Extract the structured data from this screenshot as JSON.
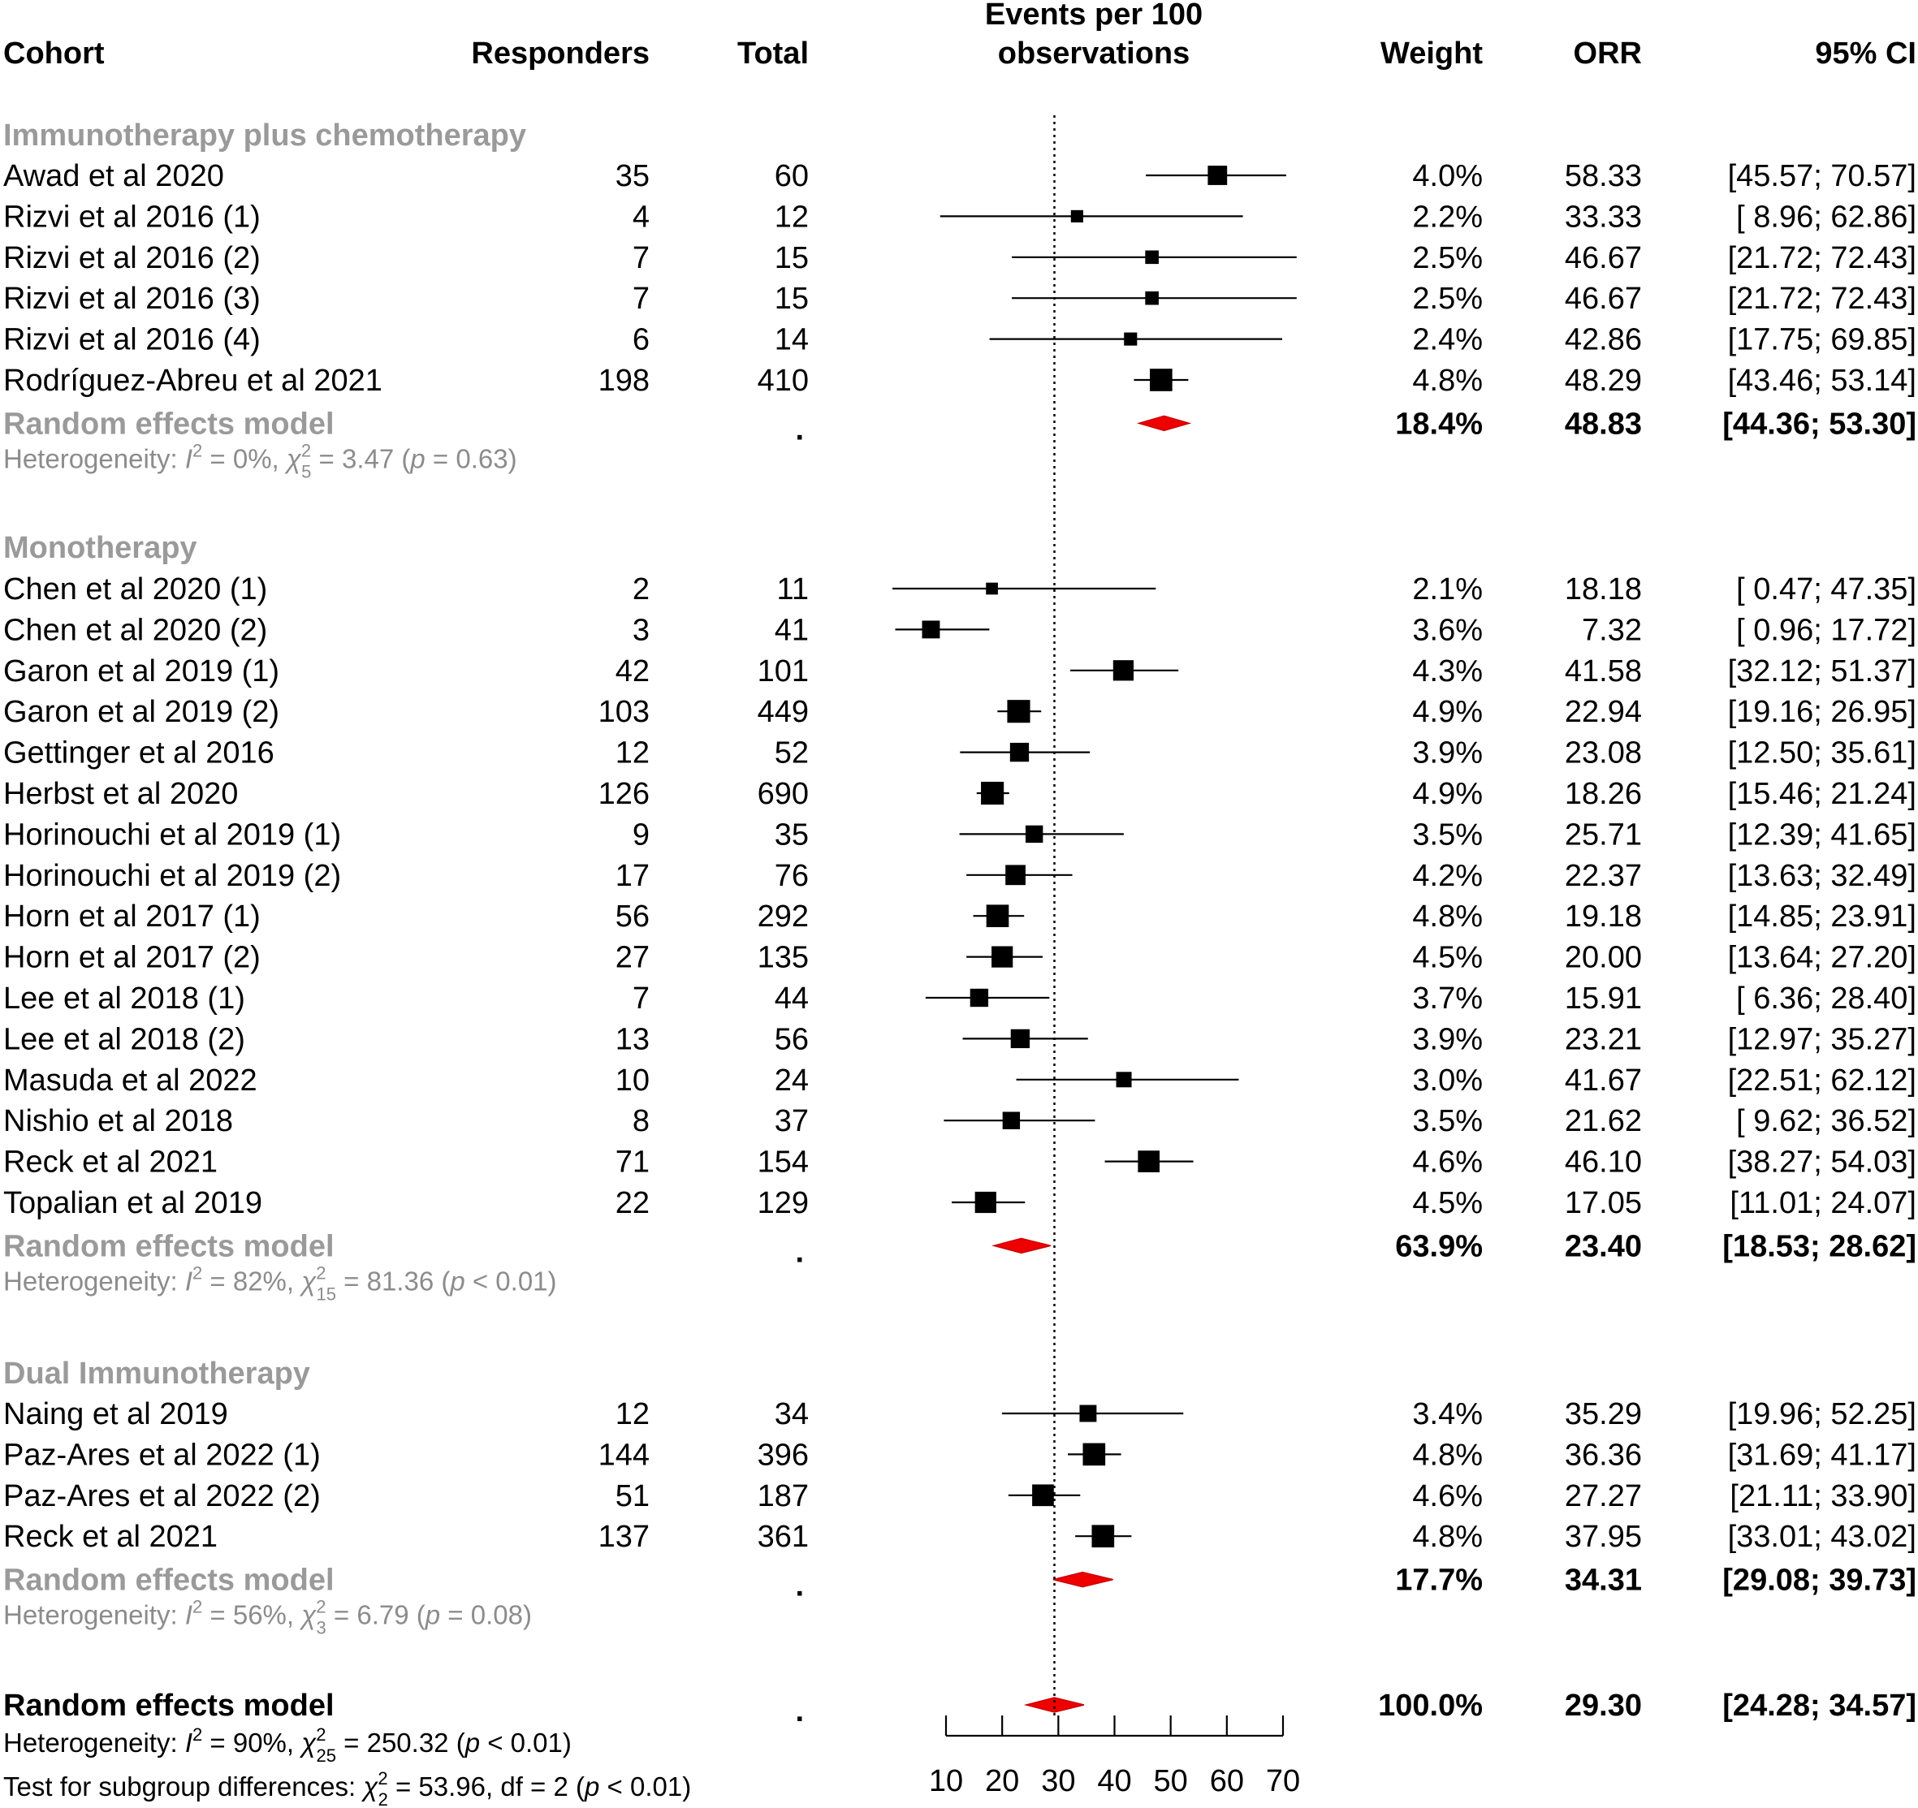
{
  "chart_data": {
    "type": "forest",
    "xlabel": "Events per 100 observations",
    "xlim": [
      10,
      70
    ],
    "xticks": [
      10,
      20,
      30,
      40,
      50,
      60,
      70
    ],
    "reference_line": 29.3,
    "columns": {
      "cohort": "Cohort",
      "responders": "Responders",
      "total": "Total",
      "events_line1": "Events per 100",
      "events_line2": "observations",
      "weight": "Weight",
      "orr": "ORR",
      "ci": "95% CI"
    },
    "groups": [
      {
        "name": "Immunotherapy plus chemotherapy",
        "studies": [
          {
            "cohort": "Awad et al 2020",
            "responders": "35",
            "total": "60",
            "weight": "4.0%",
            "orr": "58.33",
            "ci": "[45.57; 70.57]",
            "est": 58.33,
            "lo": 45.57,
            "hi": 70.57,
            "w": 4.0
          },
          {
            "cohort": "Rizvi et al 2016 (1)",
            "responders": "4",
            "total": "12",
            "weight": "2.2%",
            "orr": "33.33",
            "ci": "[ 8.96; 62.86]",
            "est": 33.33,
            "lo": 8.96,
            "hi": 62.86,
            "w": 2.2
          },
          {
            "cohort": "Rizvi et al 2016 (2)",
            "responders": "7",
            "total": "15",
            "weight": "2.5%",
            "orr": "46.67",
            "ci": "[21.72; 72.43]",
            "est": 46.67,
            "lo": 21.72,
            "hi": 72.43,
            "w": 2.5
          },
          {
            "cohort": "Rizvi et al 2016 (3)",
            "responders": "7",
            "total": "15",
            "weight": "2.5%",
            "orr": "46.67",
            "ci": "[21.72; 72.43]",
            "est": 46.67,
            "lo": 21.72,
            "hi": 72.43,
            "w": 2.5
          },
          {
            "cohort": "Rizvi et al 2016 (4)",
            "responders": "6",
            "total": "14",
            "weight": "2.4%",
            "orr": "42.86",
            "ci": "[17.75; 69.85]",
            "est": 42.86,
            "lo": 17.75,
            "hi": 69.85,
            "w": 2.4
          },
          {
            "cohort": "Rodríguez-Abreu et al 2021",
            "responders": "198",
            "total": "410",
            "weight": "4.8%",
            "orr": "48.29",
            "ci": "[43.46; 53.14]",
            "est": 48.29,
            "lo": 43.46,
            "hi": 53.14,
            "w": 4.8
          }
        ],
        "summary": {
          "label": "Random effects model",
          "dot": ".",
          "weight": "18.4%",
          "orr": "48.83",
          "ci": "[44.36; 53.30]",
          "est": 48.83,
          "lo": 44.36,
          "hi": 53.3
        },
        "heterogeneity": {
          "prefix": "Heterogeneity: ",
          "I": "I",
          "i2_value": " = 0%, ",
          "chi": "χ",
          "df": "5",
          "chi_value": " = 3.47 (",
          "p": "p",
          "p_value": " = 0.63)"
        }
      },
      {
        "name": "Monotherapy",
        "studies": [
          {
            "cohort": "Chen et al 2020 (1)",
            "responders": "2",
            "total": "11",
            "weight": "2.1%",
            "orr": "18.18",
            "ci": "[ 0.47; 47.35]",
            "est": 18.18,
            "lo": 0.47,
            "hi": 47.35,
            "w": 2.1
          },
          {
            "cohort": "Chen et al 2020 (2)",
            "responders": "3",
            "total": "41",
            "weight": "3.6%",
            "orr": "7.32",
            "ci": "[ 0.96; 17.72]",
            "est": 7.32,
            "lo": 0.96,
            "hi": 17.72,
            "w": 3.6
          },
          {
            "cohort": "Garon et al 2019 (1)",
            "responders": "42",
            "total": "101",
            "weight": "4.3%",
            "orr": "41.58",
            "ci": "[32.12; 51.37]",
            "est": 41.58,
            "lo": 32.12,
            "hi": 51.37,
            "w": 4.3
          },
          {
            "cohort": "Garon et al 2019 (2)",
            "responders": "103",
            "total": "449",
            "weight": "4.9%",
            "orr": "22.94",
            "ci": "[19.16; 26.95]",
            "est": 22.94,
            "lo": 19.16,
            "hi": 26.95,
            "w": 4.9
          },
          {
            "cohort": "Gettinger et al 2016",
            "responders": "12",
            "total": "52",
            "weight": "3.9%",
            "orr": "23.08",
            "ci": "[12.50; 35.61]",
            "est": 23.08,
            "lo": 12.5,
            "hi": 35.61,
            "w": 3.9
          },
          {
            "cohort": "Herbst et al 2020",
            "responders": "126",
            "total": "690",
            "weight": "4.9%",
            "orr": "18.26",
            "ci": "[15.46; 21.24]",
            "est": 18.26,
            "lo": 15.46,
            "hi": 21.24,
            "w": 4.9
          },
          {
            "cohort": "Horinouchi et al 2019 (1)",
            "responders": "9",
            "total": "35",
            "weight": "3.5%",
            "orr": "25.71",
            "ci": "[12.39; 41.65]",
            "est": 25.71,
            "lo": 12.39,
            "hi": 41.65,
            "w": 3.5
          },
          {
            "cohort": "Horinouchi et al 2019 (2)",
            "responders": "17",
            "total": "76",
            "weight": "4.2%",
            "orr": "22.37",
            "ci": "[13.63; 32.49]",
            "est": 22.37,
            "lo": 13.63,
            "hi": 32.49,
            "w": 4.2
          },
          {
            "cohort": "Horn et al 2017 (1)",
            "responders": "56",
            "total": "292",
            "weight": "4.8%",
            "orr": "19.18",
            "ci": "[14.85; 23.91]",
            "est": 19.18,
            "lo": 14.85,
            "hi": 23.91,
            "w": 4.8
          },
          {
            "cohort": "Horn et al 2017 (2)",
            "responders": "27",
            "total": "135",
            "weight": "4.5%",
            "orr": "20.00",
            "ci": "[13.64; 27.20]",
            "est": 20.0,
            "lo": 13.64,
            "hi": 27.2,
            "w": 4.5
          },
          {
            "cohort": "Lee et al 2018 (1)",
            "responders": "7",
            "total": "44",
            "weight": "3.7%",
            "orr": "15.91",
            "ci": "[ 6.36; 28.40]",
            "est": 15.91,
            "lo": 6.36,
            "hi": 28.4,
            "w": 3.7
          },
          {
            "cohort": "Lee et al 2018 (2)",
            "responders": "13",
            "total": "56",
            "weight": "3.9%",
            "orr": "23.21",
            "ci": "[12.97; 35.27]",
            "est": 23.21,
            "lo": 12.97,
            "hi": 35.27,
            "w": 3.9
          },
          {
            "cohort": "Masuda et al 2022",
            "responders": "10",
            "total": "24",
            "weight": "3.0%",
            "orr": "41.67",
            "ci": "[22.51; 62.12]",
            "est": 41.67,
            "lo": 22.51,
            "hi": 62.12,
            "w": 3.0
          },
          {
            "cohort": "Nishio et al 2018",
            "responders": "8",
            "total": "37",
            "weight": "3.5%",
            "orr": "21.62",
            "ci": "[ 9.62; 36.52]",
            "est": 21.62,
            "lo": 9.62,
            "hi": 36.52,
            "w": 3.5
          },
          {
            "cohort": "Reck et al 2021",
            "responders": "71",
            "total": "154",
            "weight": "4.6%",
            "orr": "46.10",
            "ci": "[38.27; 54.03]",
            "est": 46.1,
            "lo": 38.27,
            "hi": 54.03,
            "w": 4.6
          },
          {
            "cohort": "Topalian et al 2019",
            "responders": "22",
            "total": "129",
            "weight": "4.5%",
            "orr": "17.05",
            "ci": "[11.01; 24.07]",
            "est": 17.05,
            "lo": 11.01,
            "hi": 24.07,
            "w": 4.5
          }
        ],
        "summary": {
          "label": "Random effects model",
          "dot": ".",
          "weight": "63.9%",
          "orr": "23.40",
          "ci": "[18.53; 28.62]",
          "est": 23.4,
          "lo": 18.53,
          "hi": 28.62
        },
        "heterogeneity": {
          "prefix": "Heterogeneity: ",
          "I": "I",
          "i2_value": " = 82%, ",
          "chi": "χ",
          "df": "15",
          "chi_value": " = 81.36 (",
          "p": "p",
          "p_value": " < 0.01)"
        }
      },
      {
        "name": "Dual Immunotherapy",
        "studies": [
          {
            "cohort": "Naing et al 2019",
            "responders": "12",
            "total": "34",
            "weight": "3.4%",
            "orr": "35.29",
            "ci": "[19.96; 52.25]",
            "est": 35.29,
            "lo": 19.96,
            "hi": 52.25,
            "w": 3.4
          },
          {
            "cohort": "Paz-Ares et al 2022 (1)",
            "responders": "144",
            "total": "396",
            "weight": "4.8%",
            "orr": "36.36",
            "ci": "[31.69; 41.17]",
            "est": 36.36,
            "lo": 31.69,
            "hi": 41.17,
            "w": 4.8
          },
          {
            "cohort": "Paz-Ares et al 2022 (2)",
            "responders": "51",
            "total": "187",
            "weight": "4.6%",
            "orr": "27.27",
            "ci": "[21.11; 33.90]",
            "est": 27.27,
            "lo": 21.11,
            "hi": 33.9,
            "w": 4.6
          },
          {
            "cohort": "Reck et al 2021",
            "responders": "137",
            "total": "361",
            "weight": "4.8%",
            "orr": "37.95",
            "ci": "[33.01; 43.02]",
            "est": 37.95,
            "lo": 33.01,
            "hi": 43.02,
            "w": 4.8
          }
        ],
        "summary": {
          "label": "Random effects model",
          "dot": ".",
          "weight": "17.7%",
          "orr": "34.31",
          "ci": "[29.08; 39.73]",
          "est": 34.31,
          "lo": 29.08,
          "hi": 39.73
        },
        "heterogeneity": {
          "prefix": "Heterogeneity: ",
          "I": "I",
          "i2_value": " = 56%, ",
          "chi": "χ",
          "df": "3",
          "chi_value": " = 6.79 (",
          "p": "p",
          "p_value": " = 0.08)"
        }
      }
    ],
    "overall": {
      "label": "Random effects model",
      "dot": ".",
      "weight": "100.0%",
      "orr": "29.30",
      "ci": "[24.28; 34.57]",
      "est": 29.3,
      "lo": 24.28,
      "hi": 34.57,
      "heterogeneity": {
        "prefix": "Heterogeneity: ",
        "I": "I",
        "i2_value": " = 90%, ",
        "chi": "χ",
        "df": "25",
        "chi_value": " = 250.32 (",
        "p": "p",
        "p_value": " < 0.01)"
      },
      "subgroup_test": {
        "prefix": "Test for subgroup differences: ",
        "chi": "χ",
        "df": "2",
        "chi_value": " = 53.96, df = 2 (",
        "p": "p",
        "p_value": " < 0.01)"
      }
    }
  }
}
